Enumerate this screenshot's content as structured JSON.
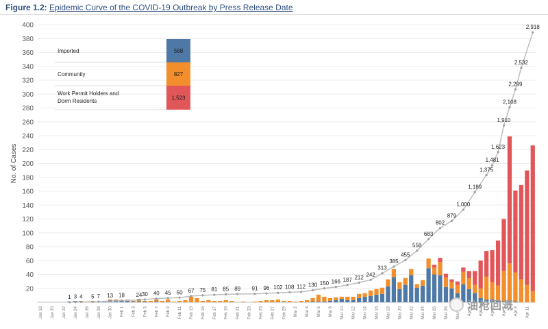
{
  "figure": {
    "label": "Figure 1.2:",
    "text": "Epidemic Curve of the COVID-19 Outbreak by Press Release Date"
  },
  "watermark": "油枪回溉",
  "chart_data": {
    "type": "bar",
    "stacked": true,
    "title": "Epidemic Curve of the COVID-19 Outbreak by Press Release Date",
    "xlabel": "",
    "ylabel": "No. of Cases",
    "ylim": [
      0,
      400
    ],
    "yticks": [
      20,
      40,
      60,
      80,
      100,
      120,
      140,
      160,
      180,
      200,
      220,
      240,
      260,
      280,
      300,
      320,
      340,
      360,
      380,
      400
    ],
    "grid": true,
    "legend_position": "top-left",
    "categories": [
      "Jan 18",
      "Jan 19",
      "Jan 20",
      "Jan 21",
      "Jan 22",
      "Jan 23",
      "Jan 24",
      "Jan 25",
      "Jan 26",
      "Jan 27",
      "Jan 28",
      "Jan 29",
      "Jan 30",
      "Jan 31",
      "Feb 01",
      "Feb 02",
      "Feb 03",
      "Feb 04",
      "Feb 05",
      "Feb 06",
      "Feb 07",
      "Feb 08",
      "Feb 09",
      "Feb 10",
      "Feb 11",
      "Feb 12",
      "Feb 13",
      "Feb 14",
      "Feb 15",
      "Feb 16",
      "Feb 17",
      "Feb 18",
      "Feb 19",
      "Feb 20",
      "Feb 21",
      "Feb 22",
      "Feb 23",
      "Feb 24",
      "Feb 25",
      "Feb 26",
      "Feb 27",
      "Feb 28",
      "Feb 29",
      "Mar 01",
      "Mar 02",
      "Mar 03",
      "Mar 04",
      "Mar 05",
      "Mar 06",
      "Mar 07",
      "Mar 08",
      "Mar 09",
      "Mar 10",
      "Mar 11",
      "Mar 12",
      "Mar 13",
      "Mar 14",
      "Mar 15",
      "Mar 16",
      "Mar 17",
      "Mar 18",
      "Mar 19",
      "Mar 20",
      "Mar 21",
      "Mar 22",
      "Mar 23",
      "Mar 24",
      "Mar 25",
      "Mar 26",
      "Mar 27",
      "Mar 28",
      "Mar 29",
      "Mar 30",
      "Mar 31",
      "Apr 01",
      "Apr 02",
      "Apr 03",
      "Apr 04",
      "Apr 05",
      "Apr 06",
      "Apr 07",
      "Apr 08",
      "Apr 09",
      "Apr 10",
      "Apr 11",
      "Apr 12"
    ],
    "xtick_labels": [
      "Jan 18",
      "Jan 20",
      "Jan 22",
      "Jan 24",
      "Jan 26",
      "Jan 28",
      "Jan 30",
      "Feb 1",
      "Feb 3",
      "Feb 5",
      "Feb 7",
      "Feb 9",
      "Feb 11",
      "Feb 13",
      "Feb 15",
      "Feb 17",
      "Feb 19",
      "Feb 21",
      "Feb 23",
      "Feb 25",
      "Feb 27",
      "Feb 29",
      "Mar 2",
      "Mar 4",
      "Mar 6",
      "Mar 8",
      "Mar 10",
      "Mar 12",
      "Mar 14",
      "Mar 16",
      "Mar 18",
      "Mar 20",
      "Mar 22",
      "Mar 24",
      "Mar 26",
      "Mar 28",
      "Mar 30",
      "Apr 1",
      "Apr 3",
      "Apr 5",
      "Apr 7",
      "Apr 9",
      "Apr 11"
    ],
    "series": [
      {
        "name": "Imported",
        "total": "568",
        "color": "#4e79a7",
        "values": [
          0,
          0,
          0,
          0,
          0,
          1,
          2,
          1,
          0,
          1,
          1,
          1,
          3,
          3,
          3,
          3,
          1,
          1,
          1,
          0,
          1,
          0,
          0,
          0,
          0,
          0,
          0,
          0,
          0,
          0,
          0,
          0,
          0,
          0,
          0,
          0,
          0,
          0,
          0,
          0,
          0,
          0,
          0,
          0,
          0,
          0,
          0,
          1,
          1,
          1,
          2,
          3,
          5,
          3,
          3,
          6,
          8,
          9,
          11,
          12,
          23,
          36,
          19,
          25,
          39,
          21,
          24,
          49,
          40,
          39,
          22,
          20,
          13,
          26,
          19,
          13,
          6,
          4,
          4,
          3,
          1,
          1,
          1,
          0,
          0,
          0
        ]
      },
      {
        "name": "Community",
        "total": "827",
        "color": "#f28e2b",
        "values": [
          0,
          0,
          0,
          0,
          0,
          0,
          0,
          1,
          0,
          1,
          0,
          0,
          1,
          1,
          0,
          1,
          1,
          4,
          1,
          2,
          3,
          2,
          4,
          1,
          2,
          3,
          8,
          6,
          2,
          3,
          2,
          2,
          3,
          2,
          0,
          1,
          0,
          1,
          2,
          3,
          3,
          4,
          2,
          2,
          1,
          2,
          3,
          5,
          10,
          7,
          4,
          4,
          3,
          5,
          5,
          6,
          5,
          8,
          8,
          9,
          10,
          12,
          10,
          10,
          9,
          5,
          8,
          14,
          10,
          19,
          14,
          9,
          12,
          18,
          16,
          12,
          14,
          33,
          25,
          21,
          44,
          55,
          42,
          33,
          25,
          16
        ]
      },
      {
        "name": "Work Permit Holders and Dorm Residents",
        "total": "1,523",
        "color": "#e15759",
        "values": [
          0,
          0,
          0,
          0,
          0,
          0,
          0,
          0,
          0,
          0,
          0,
          0,
          0,
          0,
          0,
          0,
          0,
          0,
          0,
          0,
          0,
          0,
          0,
          0,
          0,
          0,
          0,
          0,
          0,
          0,
          0,
          0,
          0,
          0,
          0,
          0,
          0,
          0,
          0,
          0,
          0,
          0,
          0,
          0,
          0,
          0,
          0,
          0,
          0,
          0,
          0,
          0,
          0,
          0,
          0,
          0,
          0,
          0,
          0,
          0,
          0,
          0,
          0,
          0,
          0,
          0,
          0,
          0,
          4,
          6,
          5,
          4,
          5,
          6,
          10,
          20,
          40,
          37,
          46,
          65,
          75,
          183,
          118,
          136,
          165,
          210
        ]
      }
    ],
    "cumulative_labels": [
      {
        "date": "Jan 23",
        "value": "1"
      },
      {
        "date": "Jan 24",
        "value": "3"
      },
      {
        "date": "Jan 25",
        "value": "4"
      },
      {
        "date": "Jan 27",
        "value": "5"
      },
      {
        "date": "Jan 28",
        "value": "7"
      },
      {
        "date": "Jan 30",
        "value": "13"
      },
      {
        "date": "Feb 01",
        "value": "18"
      },
      {
        "date": "Feb 04",
        "value": "24"
      },
      {
        "date": "Feb 05",
        "value": "30"
      },
      {
        "date": "Feb 07",
        "value": "40"
      },
      {
        "date": "Feb 09",
        "value": "45"
      },
      {
        "date": "Feb 11",
        "value": "50"
      },
      {
        "date": "Feb 13",
        "value": "67"
      },
      {
        "date": "Feb 15",
        "value": "75"
      },
      {
        "date": "Feb 17",
        "value": "81"
      },
      {
        "date": "Feb 19",
        "value": "85"
      },
      {
        "date": "Feb 21",
        "value": "89"
      },
      {
        "date": "Feb 24",
        "value": "91"
      },
      {
        "date": "Feb 26",
        "value": "96"
      },
      {
        "date": "Feb 28",
        "value": "102"
      },
      {
        "date": "Mar 01",
        "value": "108"
      },
      {
        "date": "Mar 03",
        "value": "112"
      },
      {
        "date": "Mar 05",
        "value": "130"
      },
      {
        "date": "Mar 07",
        "value": "150"
      },
      {
        "date": "Mar 09",
        "value": "166"
      },
      {
        "date": "Mar 11",
        "value": "187"
      },
      {
        "date": "Mar 13",
        "value": "212"
      },
      {
        "date": "Mar 15",
        "value": "242"
      },
      {
        "date": "Mar 17",
        "value": "313"
      },
      {
        "date": "Mar 19",
        "value": "385"
      },
      {
        "date": "Mar 21",
        "value": "455"
      },
      {
        "date": "Mar 23",
        "value": "558"
      },
      {
        "date": "Mar 25",
        "value": "683"
      },
      {
        "date": "Mar 27",
        "value": "802"
      },
      {
        "date": "Mar 29",
        "value": "879"
      },
      {
        "date": "Mar 31",
        "value": "1,000"
      },
      {
        "date": "Apr 02",
        "value": "1,189"
      },
      {
        "date": "Apr 04",
        "value": "1,375"
      },
      {
        "date": "Apr 05",
        "value": "1,481"
      },
      {
        "date": "Apr 06",
        "value": "1,623"
      },
      {
        "date": "Apr 07",
        "value": "1,910"
      },
      {
        "date": "Apr 08",
        "value": "2,108"
      },
      {
        "date": "Apr 09",
        "value": "2,299"
      },
      {
        "date": "Apr 10",
        "value": "2,532"
      },
      {
        "date": "Apr 12",
        "value": "2,918"
      }
    ]
  }
}
